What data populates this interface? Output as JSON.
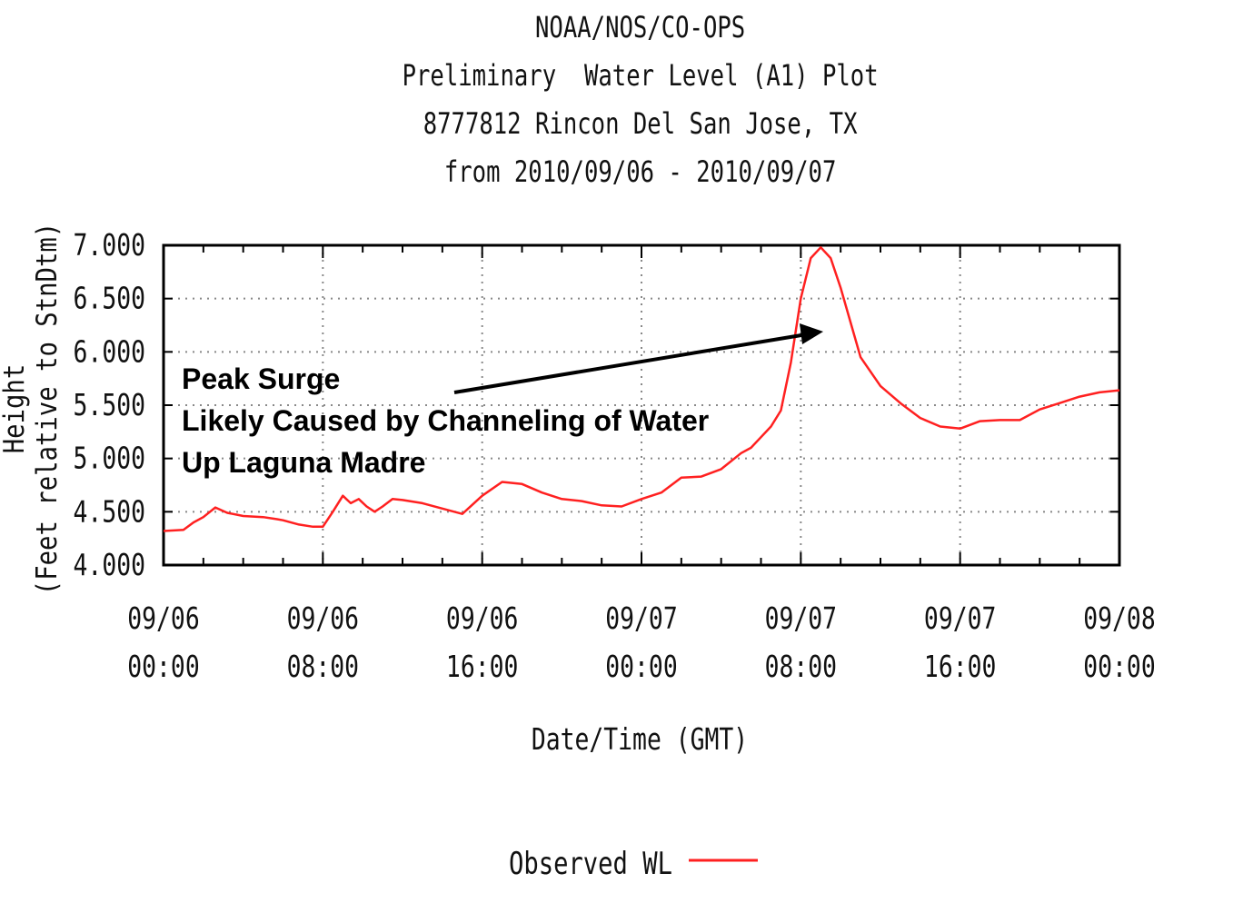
{
  "chart_data": {
    "type": "line",
    "title": [
      "NOAA/NOS/CO-OPS",
      "Preliminary  Water Level (A1) Plot",
      "8777812 Rincon Del San Jose, TX",
      "from 2010/09/06 - 2010/09/07"
    ],
    "xlabel": "Date/Time (GMT)",
    "ylabel": [
      "Height",
      "(Feet relative to StnDtm)"
    ],
    "ylim": [
      4.0,
      7.0
    ],
    "xlim": [
      0,
      48
    ],
    "yticks": [
      "4.000",
      "4.500",
      "5.000",
      "5.500",
      "6.000",
      "6.500",
      "7.000"
    ],
    "xticks": [
      {
        "line1": "09/06",
        "line2": "00:00"
      },
      {
        "line1": "09/06",
        "line2": "08:00"
      },
      {
        "line1": "09/06",
        "line2": "16:00"
      },
      {
        "line1": "09/07",
        "line2": "00:00"
      },
      {
        "line1": "09/07",
        "line2": "08:00"
      },
      {
        "line1": "09/07",
        "line2": "16:00"
      },
      {
        "line1": "09/08",
        "line2": "00:00"
      }
    ],
    "grid": true,
    "legend": {
      "label": "Observed WL",
      "placement": "bottom-center"
    },
    "series": [
      {
        "name": "Observed WL",
        "color": "#ff2020",
        "x": [
          0,
          1,
          1.5,
          2,
          2.6,
          3.2,
          4,
          5,
          5.7,
          6,
          6.8,
          7.5,
          8,
          8.5,
          9,
          9.4,
          9.8,
          10.2,
          10.6,
          11,
          11.5,
          12,
          13,
          14,
          15,
          16,
          17,
          18,
          19,
          20,
          21,
          22,
          23,
          24,
          25,
          26,
          27,
          28,
          29,
          29.5,
          30,
          30.5,
          31,
          31.5,
          32,
          32.5,
          33,
          33.5,
          34,
          35,
          36,
          37,
          38,
          39,
          40,
          41,
          42,
          43,
          44,
          45,
          46,
          47,
          48
        ],
        "y": [
          4.32,
          4.33,
          4.4,
          4.45,
          4.54,
          4.49,
          4.46,
          4.45,
          4.43,
          4.42,
          4.38,
          4.36,
          4.36,
          4.5,
          4.65,
          4.58,
          4.62,
          4.55,
          4.5,
          4.55,
          4.62,
          4.61,
          4.58,
          4.53,
          4.48,
          4.65,
          4.78,
          4.76,
          4.68,
          4.62,
          4.6,
          4.56,
          4.55,
          4.62,
          4.68,
          4.82,
          4.83,
          4.9,
          5.05,
          5.1,
          5.2,
          5.3,
          5.45,
          5.9,
          6.5,
          6.88,
          6.98,
          6.88,
          6.6,
          5.95,
          5.68,
          5.52,
          5.38,
          5.3,
          5.28,
          5.35,
          5.36,
          5.36,
          5.46,
          5.52,
          5.58,
          5.62,
          5.64
        ]
      }
    ]
  },
  "annotation": {
    "lines": [
      "Peak Surge",
      "Likely Caused by Channeling of Water",
      "Up Laguna Madre"
    ]
  }
}
